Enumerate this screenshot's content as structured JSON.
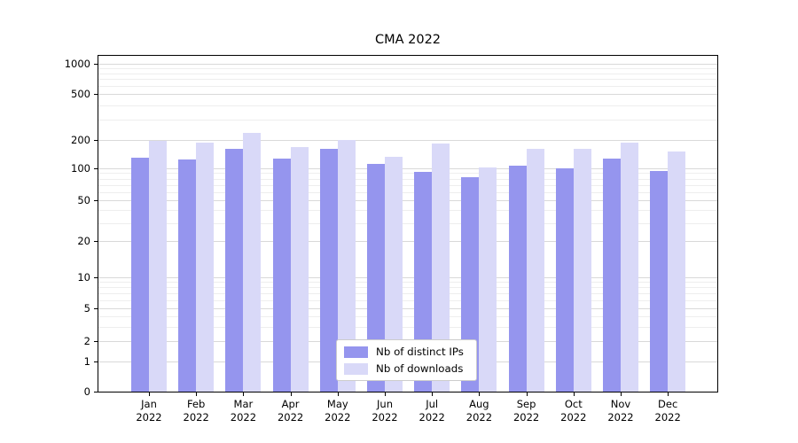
{
  "chart_data": {
    "type": "bar",
    "title": "CMA 2022",
    "yscale": "symlog",
    "grid": true,
    "xlabel": "",
    "ylabel": "",
    "categories": [
      "Jan 2022",
      "Feb 2022",
      "Mar 2022",
      "Apr 2022",
      "May 2022",
      "Jun 2022",
      "Jul 2022",
      "Aug 2022",
      "Sep 2022",
      "Oct 2022",
      "Nov 2022",
      "Dec 2022"
    ],
    "series": [
      {
        "name": "Nb of distinct IPs",
        "color": "#9595ee",
        "values": [
          130,
          125,
          160,
          127,
          160,
          112,
          92,
          83,
          107,
          100,
          126,
          95
        ]
      },
      {
        "name": "Nb of downloads",
        "color": "#d9d9f8",
        "values": [
          196,
          188,
          232,
          170,
          199,
          133,
          183,
          102,
          160,
          162,
          189,
          150
        ]
      }
    ],
    "yticks": [
      0,
      1,
      2,
      5,
      10,
      20,
      50,
      100,
      200,
      500,
      1000
    ],
    "ylim": [
      0,
      1200
    ],
    "legend_position": "lower center",
    "colors": {
      "grid_major": "#d9d9d9",
      "grid_minor": "#eeeeee",
      "axis": "#000000"
    }
  }
}
